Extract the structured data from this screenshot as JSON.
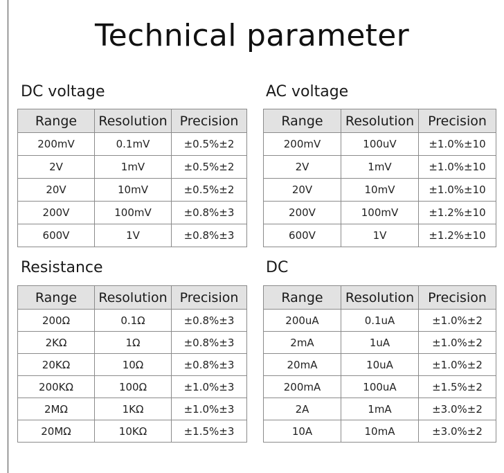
{
  "title": "Technical parameter",
  "headers": [
    "Range",
    "Resolution",
    "Precision"
  ],
  "sections": [
    {
      "id": "dcv",
      "title": "DC voltage",
      "rows": [
        [
          "200mV",
          "0.1mV",
          "±0.5%±2"
        ],
        [
          "2V",
          "1mV",
          "±0.5%±2"
        ],
        [
          "20V",
          "10mV",
          "±0.5%±2"
        ],
        [
          "200V",
          "100mV",
          "±0.8%±3"
        ],
        [
          "600V",
          "1V",
          "±0.8%±3"
        ]
      ]
    },
    {
      "id": "acv",
      "title": "AC voltage",
      "rows": [
        [
          "200mV",
          "100uV",
          "±1.0%±10"
        ],
        [
          "2V",
          "1mV",
          "±1.0%±10"
        ],
        [
          "20V",
          "10mV",
          "±1.0%±10"
        ],
        [
          "200V",
          "100mV",
          "±1.2%±10"
        ],
        [
          "600V",
          "1V",
          "±1.2%±10"
        ]
      ]
    },
    {
      "id": "res",
      "title": "Resistance",
      "rows": [
        [
          "200Ω",
          "0.1Ω",
          "±0.8%±3"
        ],
        [
          "2KΩ",
          "1Ω",
          "±0.8%±3"
        ],
        [
          "20KΩ",
          "10Ω",
          "±0.8%±3"
        ],
        [
          "200KΩ",
          "100Ω",
          "±1.0%±3"
        ],
        [
          "2MΩ",
          "1KΩ",
          "±1.0%±3"
        ],
        [
          "20MΩ",
          "10KΩ",
          "±1.5%±3"
        ]
      ]
    },
    {
      "id": "dca",
      "title": "DC",
      "rows": [
        [
          "200uA",
          "0.1uA",
          "±1.0%±2"
        ],
        [
          "2mA",
          "1uA",
          "±1.0%±2"
        ],
        [
          "20mA",
          "10uA",
          "±1.0%±2"
        ],
        [
          "200mA",
          "100uA",
          "±1.5%±2"
        ],
        [
          "2A",
          "1mA",
          "±3.0%±2"
        ],
        [
          "10A",
          "10mA",
          "±3.0%±2"
        ]
      ]
    }
  ]
}
